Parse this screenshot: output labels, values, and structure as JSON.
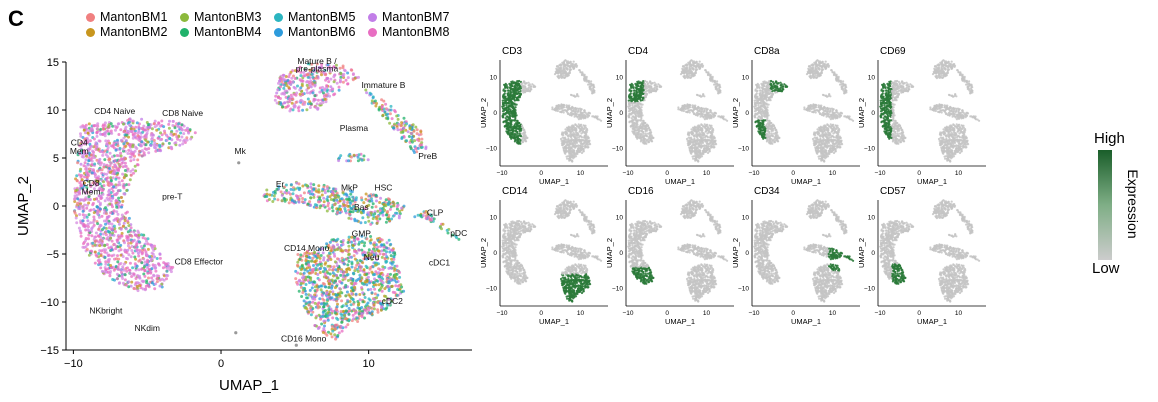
{
  "panel_label": "C",
  "legend": [
    {
      "name": "MantonBM1",
      "color": "#f08080"
    },
    {
      "name": "MantonBM2",
      "color": "#c8961e"
    },
    {
      "name": "MantonBM3",
      "color": "#8cb93c"
    },
    {
      "name": "MantonBM4",
      "color": "#21b26b"
    },
    {
      "name": "MantonBM5",
      "color": "#2bb5c0"
    },
    {
      "name": "MantonBM6",
      "color": "#2d9bdc"
    },
    {
      "name": "MantonBM7",
      "color": "#c27ee8"
    },
    {
      "name": "MantonBM8",
      "color": "#e86ec2"
    }
  ],
  "chart_data": [
    {
      "type": "scatter",
      "xlabel": "UMAP_1",
      "ylabel": "UMAP_2",
      "xlim": [
        -10.5,
        17
      ],
      "ylim": [
        -15,
        15
      ],
      "xticks": [
        -10,
        0,
        10
      ],
      "yticks": [
        15,
        10,
        5,
        0,
        -5,
        -10,
        -15
      ],
      "cluster_labels": [
        {
          "text": "Mature B /",
          "x": 6.5,
          "y": 14.8
        },
        {
          "text": "pre-plasma",
          "x": 6.5,
          "y": 14.0
        },
        {
          "text": "Immature B",
          "x": 11.0,
          "y": 12.3
        },
        {
          "text": "Plasma",
          "x": 9.0,
          "y": 7.8
        },
        {
          "text": "PreB",
          "x": 14.0,
          "y": 4.9
        },
        {
          "text": "Mk",
          "x": 1.3,
          "y": 5.4
        },
        {
          "text": "Er",
          "x": 4.0,
          "y": 2.0
        },
        {
          "text": "MkP",
          "x": 8.7,
          "y": 1.6
        },
        {
          "text": "HSC",
          "x": 11.0,
          "y": 1.6
        },
        {
          "text": "Bas",
          "x": 9.5,
          "y": -0.4
        },
        {
          "text": "CLP",
          "x": 14.5,
          "y": -1.0
        },
        {
          "text": "GMP",
          "x": 9.5,
          "y": -3.2
        },
        {
          "text": "pDC",
          "x": 16.1,
          "y": -3.1
        },
        {
          "text": "Neu",
          "x": 10.2,
          "y": -5.6
        },
        {
          "text": "cDC1",
          "x": 14.8,
          "y": -6.2
        },
        {
          "text": "cDC2",
          "x": 11.6,
          "y": -10.2
        },
        {
          "text": "CD14 Mono",
          "x": 5.8,
          "y": -4.7
        },
        {
          "text": "CD16 Mono",
          "x": 5.6,
          "y": -14.1
        },
        {
          "text": "CD4 Naive",
          "x": -7.2,
          "y": 9.6
        },
        {
          "text": "CD8 Naive",
          "x": -2.6,
          "y": 9.4
        },
        {
          "text": "CD4",
          "x": -9.6,
          "y": 6.3
        },
        {
          "text": "Mem",
          "x": -9.6,
          "y": 5.4
        },
        {
          "text": "CD8",
          "x": -8.8,
          "y": 2.1
        },
        {
          "text": "Mem",
          "x": -8.8,
          "y": 1.2
        },
        {
          "text": "pre-T",
          "x": -3.3,
          "y": 0.7
        },
        {
          "text": "CD8 Effector",
          "x": -1.5,
          "y": -6.1
        },
        {
          "text": "NKbright",
          "x": -7.8,
          "y": -11.2
        },
        {
          "text": "NKdim",
          "x": -5.0,
          "y": -13.0
        }
      ]
    },
    {
      "type": "scatter",
      "series_panels": [
        {
          "title": "CD3",
          "hot": "tcell",
          "level": 0.95
        },
        {
          "title": "CD4",
          "hot": "cd4",
          "level": 0.85
        },
        {
          "title": "CD8a",
          "hot": "cd8",
          "level": 0.9
        },
        {
          "title": "CD69",
          "hot": "cd69",
          "level": 0.55
        },
        {
          "title": "CD14",
          "hot": "mono",
          "level": 0.95
        },
        {
          "title": "CD16",
          "hot": "nk",
          "level": 0.9
        },
        {
          "title": "CD34",
          "hot": "hsc",
          "level": 0.95
        },
        {
          "title": "CD57",
          "hot": "nkdim",
          "level": 0.75
        }
      ],
      "xlabel": "UMAP_1",
      "ylabel": "UMAP_2",
      "xticks": [
        -10,
        0,
        10
      ],
      "yticks": [
        10,
        0,
        -10
      ],
      "colorbar": {
        "title": "Expression",
        "high": "High",
        "low": "Low",
        "high_color": "#1a5e2a",
        "low_color": "#cccccc"
      }
    }
  ]
}
